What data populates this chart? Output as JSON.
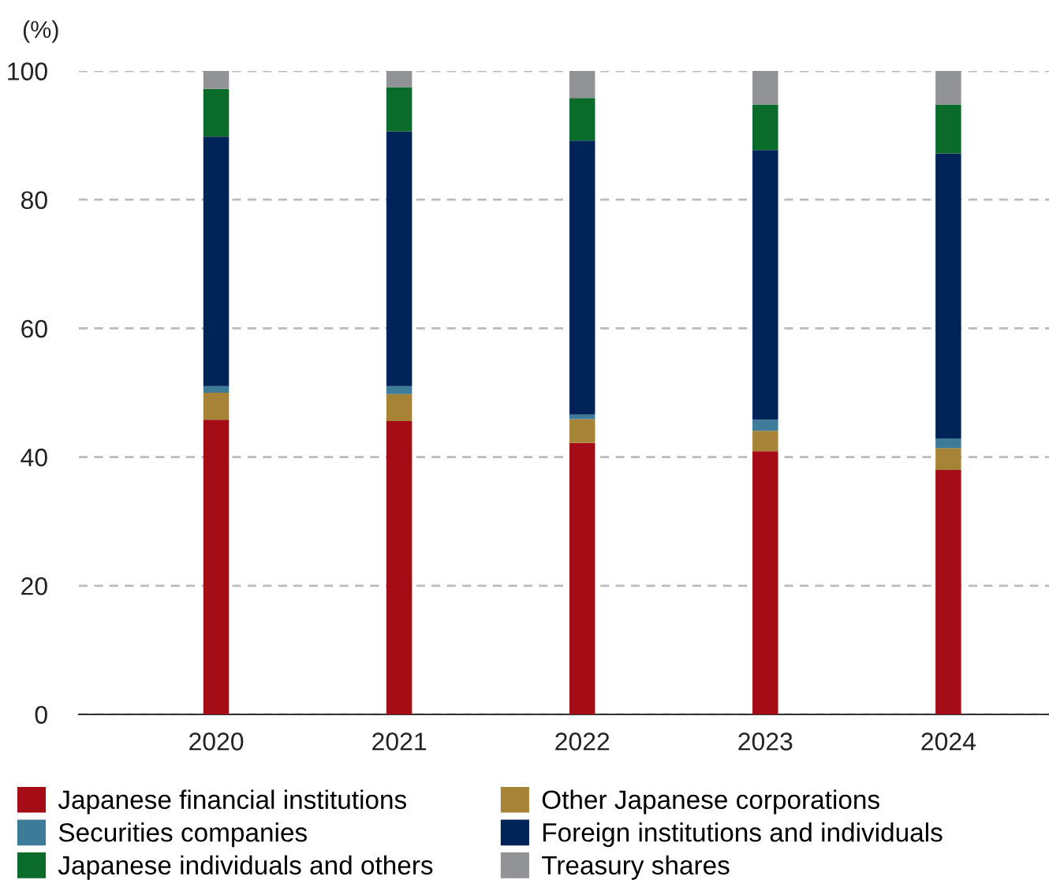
{
  "chart_data": {
    "type": "bar",
    "stacked": true,
    "ylabel": "(%)",
    "categories": [
      "2020",
      "2021",
      "2022",
      "2023",
      "2024"
    ],
    "series": [
      {
        "name": "Japanese financial institutions",
        "color": "#a50d16",
        "values": [
          45.8,
          45.6,
          42.2,
          40.9,
          38.0
        ]
      },
      {
        "name": "Other Japanese corporations",
        "color": "#a78337",
        "values": [
          4.2,
          4.2,
          3.7,
          3.2,
          3.4
        ]
      },
      {
        "name": "Securities companies",
        "color": "#3e7b98",
        "values": [
          1.0,
          1.2,
          0.7,
          1.7,
          1.5
        ]
      },
      {
        "name": "Foreign institutions and individuals",
        "color": "#002358",
        "values": [
          38.8,
          39.6,
          42.6,
          41.9,
          44.3
        ]
      },
      {
        "name": "Japanese individuals and others",
        "color": "#0a6b2b",
        "values": [
          7.4,
          6.9,
          6.6,
          7.1,
          7.6
        ]
      },
      {
        "name": "Treasury shares",
        "color": "#929397",
        "values": [
          2.8,
          2.5,
          4.2,
          5.2,
          5.2
        ]
      }
    ],
    "ylim": [
      0,
      100
    ],
    "yticks": [
      0,
      20,
      40,
      60,
      80,
      100
    ],
    "grid": "y",
    "legend": "bottom"
  }
}
